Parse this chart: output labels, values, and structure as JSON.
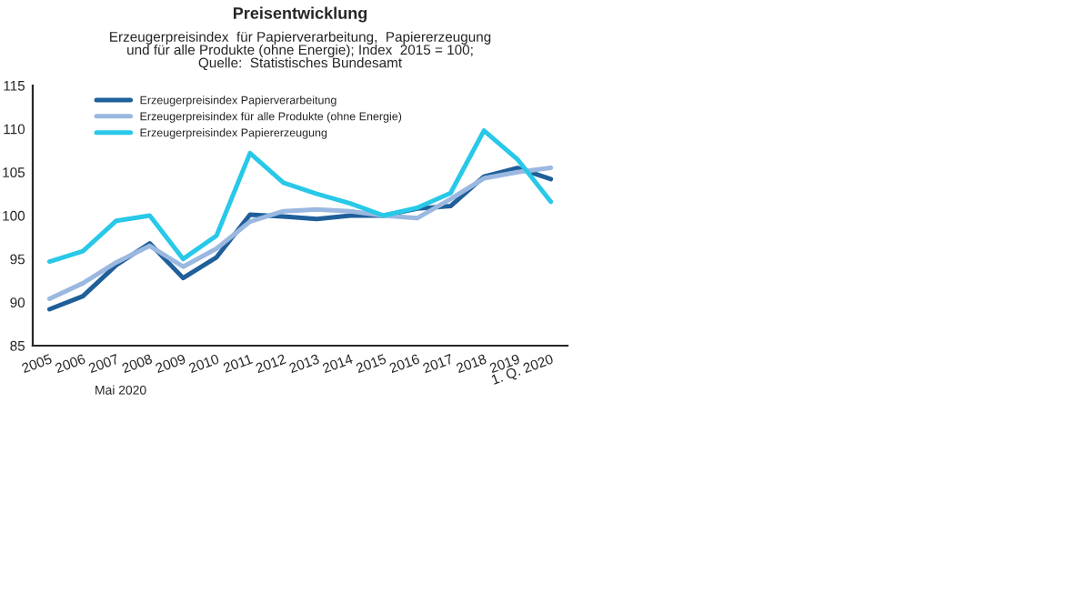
{
  "chart_data": {
    "type": "line",
    "title": "Preisentwicklung",
    "subtitle": "Erzeugerpreisindex  für Papierverarbeitung,  Papiererzeugung\nund für alle Produkte (ohne Energie); Index  2015 = 100;\nQuelle:  Statistisches Bundesamt",
    "categories": [
      "2005",
      "2006",
      "2007",
      "2008",
      "2009",
      "2010",
      "2011",
      "2012",
      "2013",
      "2014",
      "2015",
      "2016",
      "2017",
      "2018",
      "2019",
      "1. Q. 2020"
    ],
    "series": [
      {
        "name": "Erzeugerpreisindex Papierverarbeitung",
        "color": "#1f5f9a",
        "values": [
          89.2,
          90.7,
          94.3,
          96.8,
          92.8,
          95.2,
          100.1,
          99.9,
          99.6,
          100.0,
          100.0,
          100.8,
          101.1,
          104.5,
          105.5,
          104.2
        ]
      },
      {
        "name": "Erzeugerpreisindex für alle Produkte (ohne Energie)",
        "color": "#9ab8e0",
        "values": [
          90.4,
          92.2,
          94.6,
          96.5,
          94.1,
          96.2,
          99.3,
          100.5,
          100.7,
          100.5,
          100.0,
          99.7,
          101.9,
          104.3,
          105.0,
          105.5
        ]
      },
      {
        "name": "Erzeugerpreisindex Papiererzeugung",
        "color": "#28c8e8",
        "values": [
          94.7,
          95.9,
          99.4,
          100.0,
          95.0,
          97.7,
          107.2,
          103.8,
          102.5,
          101.4,
          100.0,
          100.9,
          102.6,
          109.8,
          106.5,
          101.6
        ]
      }
    ],
    "ylim": [
      85,
      115
    ],
    "yticks": [
      85,
      90,
      95,
      100,
      105,
      110,
      115
    ],
    "grid": false,
    "legend": "top left",
    "annotations": [
      "Mai 2020"
    ]
  }
}
